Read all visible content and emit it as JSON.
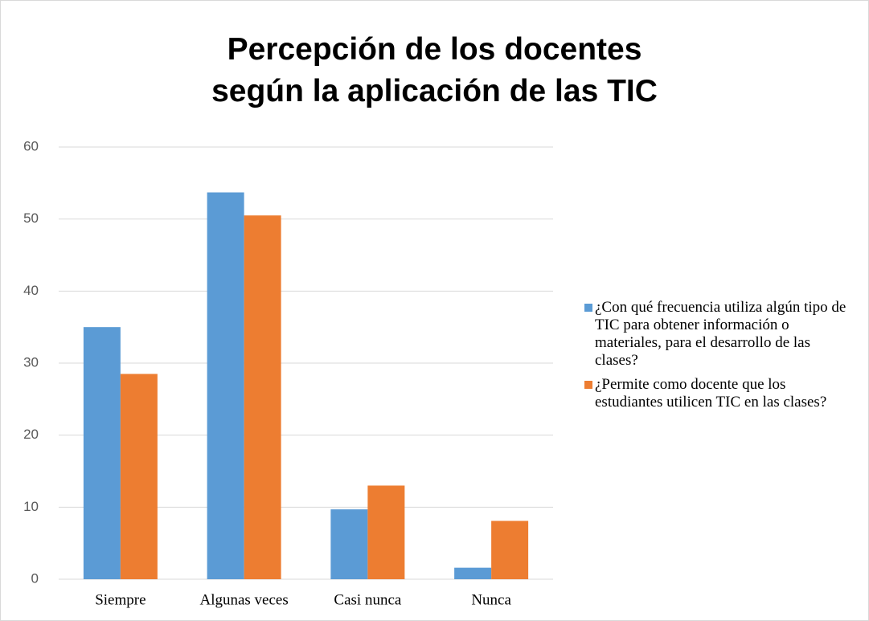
{
  "chart_data": {
    "type": "bar",
    "title": "Percepción de los docentes según la aplicación de las TIC",
    "categories": [
      "Siempre",
      "Algunas veces",
      "Casi nunca",
      "Nunca"
    ],
    "series": [
      {
        "name": "¿Con qué frecuencia utiliza algún tipo de TIC para obtener información o materiales,  para el desarrollo de las clases?",
        "color": "#5b9bd5",
        "values": [
          35.0,
          53.7,
          9.7,
          1.6
        ]
      },
      {
        "name": "¿Permite como docente que los estudiantes utilicen TIC en las clases?",
        "color": "#ed7d31",
        "values": [
          28.5,
          50.5,
          13.0,
          8.1
        ]
      }
    ],
    "ylim": [
      0,
      60
    ],
    "yticks": [
      0,
      10,
      20,
      30,
      40,
      50,
      60
    ],
    "grid": true,
    "legend": "right"
  }
}
